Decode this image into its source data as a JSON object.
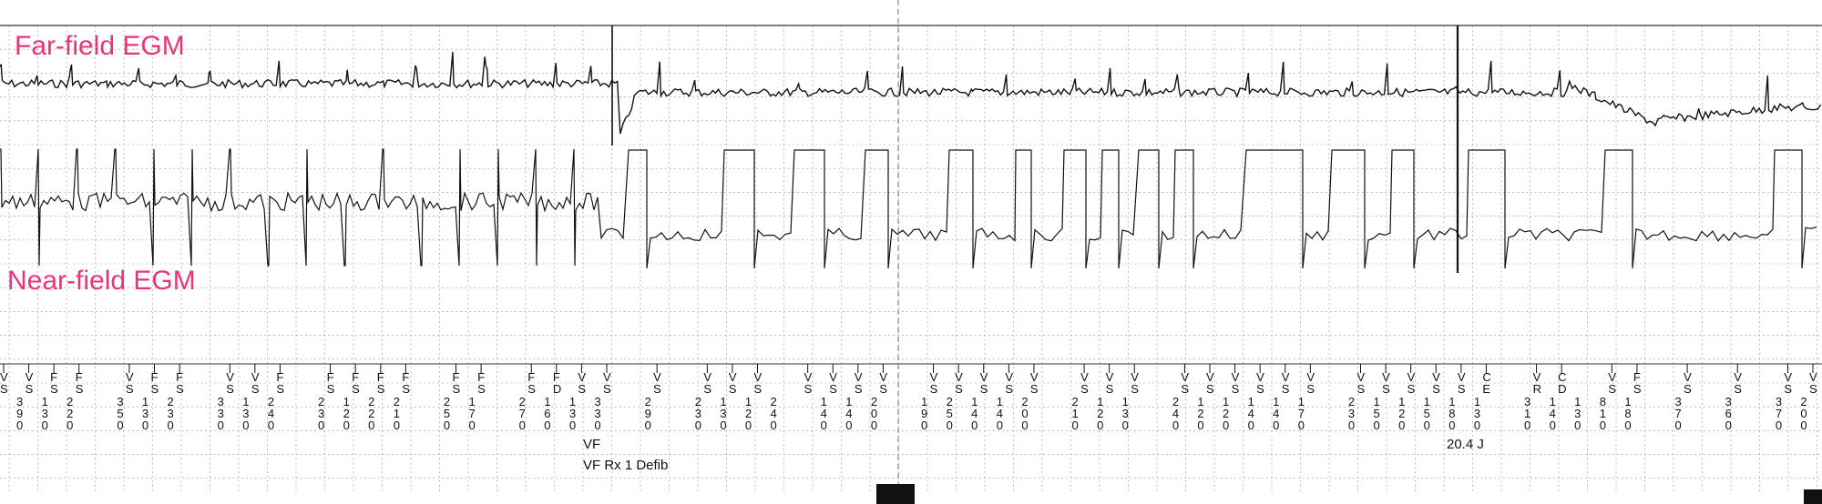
{
  "labels": {
    "far_field": "Far-field EGM",
    "near_field": "Near-field EGM"
  },
  "colors": {
    "label": "#e8357a",
    "trace": "#111111",
    "grid": "#9a9a9a"
  },
  "annotations": {
    "episode": "VF",
    "therapy": "VF Rx 1 Defib",
    "energy": "20.4 J"
  },
  "marker_channel": [
    {
      "m": "VS",
      "i": "390"
    },
    {
      "m": "VS",
      "i": "130"
    },
    {
      "m": "FS",
      "i": "220"
    },
    {
      "m": "FS",
      "i": ""
    },
    {
      "m": "",
      "i": "350"
    },
    {
      "m": "VS",
      "i": "130"
    },
    {
      "m": "FS",
      "i": "230"
    },
    {
      "m": "FS",
      "i": ""
    },
    {
      "m": "",
      "i": "330"
    },
    {
      "m": "VS",
      "i": "130"
    },
    {
      "m": "VS",
      "i": "240"
    },
    {
      "m": "FS",
      "i": ""
    },
    {
      "m": "",
      "i": "230"
    },
    {
      "m": "FS",
      "i": "120"
    },
    {
      "m": "FS",
      "i": "220"
    },
    {
      "m": "FS",
      "i": "210"
    },
    {
      "m": "FS",
      "i": ""
    },
    {
      "m": "",
      "i": "250"
    },
    {
      "m": "FS",
      "i": "170"
    },
    {
      "m": "FS",
      "i": ""
    },
    {
      "m": "",
      "i": "270"
    },
    {
      "m": "FS",
      "i": "160"
    },
    {
      "m": "FD",
      "i": "130"
    },
    {
      "m": "VS",
      "i": "330"
    },
    {
      "m": "VS",
      "i": ""
    },
    {
      "m": "",
      "i": "290"
    },
    {
      "m": "VS",
      "i": ""
    },
    {
      "m": "",
      "i": "230"
    },
    {
      "m": "VS",
      "i": "130"
    },
    {
      "m": "VS",
      "i": "120"
    },
    {
      "m": "VS",
      "i": "240"
    },
    {
      "m": "",
      "i": ""
    },
    {
      "m": "VS",
      "i": "140"
    },
    {
      "m": "VS",
      "i": "140"
    },
    {
      "m": "VS",
      "i": "200"
    },
    {
      "m": "VS",
      "i": ""
    },
    {
      "m": "",
      "i": "190"
    },
    {
      "m": "VS",
      "i": "250"
    },
    {
      "m": "VS",
      "i": "140"
    },
    {
      "m": "VS",
      "i": "140"
    },
    {
      "m": "VS",
      "i": "200"
    },
    {
      "m": "VS",
      "i": ""
    },
    {
      "m": "",
      "i": "210"
    },
    {
      "m": "VS",
      "i": "120"
    },
    {
      "m": "VS",
      "i": "130"
    },
    {
      "m": "VS",
      "i": ""
    },
    {
      "m": "",
      "i": "240"
    },
    {
      "m": "VS",
      "i": "120"
    },
    {
      "m": "VS",
      "i": "120"
    },
    {
      "m": "VS",
      "i": "140"
    },
    {
      "m": "VS",
      "i": "140"
    },
    {
      "m": "VS",
      "i": "170"
    },
    {
      "m": "VS",
      "i": ""
    },
    {
      "m": "",
      "i": "230"
    },
    {
      "m": "VS",
      "i": "150"
    },
    {
      "m": "VS",
      "i": "120"
    },
    {
      "m": "VS",
      "i": "150"
    },
    {
      "m": "VS",
      "i": "180"
    },
    {
      "m": "VS",
      "i": "130"
    },
    {
      "m": "CE",
      "i": ""
    },
    {
      "m": "",
      "i": "310"
    },
    {
      "m": "VR",
      "i": "140"
    },
    {
      "m": "CD",
      "i": "130"
    },
    {
      "m": "",
      "i": "810"
    },
    {
      "m": "VS",
      "i": "180"
    },
    {
      "m": "FS",
      "i": ""
    },
    {
      "m": "",
      "i": "370"
    },
    {
      "m": "VS",
      "i": ""
    },
    {
      "m": "",
      "i": "360"
    },
    {
      "m": "VS",
      "i": ""
    },
    {
      "m": "",
      "i": "370"
    },
    {
      "m": "VS",
      "i": "200"
    },
    {
      "m": "VS",
      "i": ""
    }
  ]
}
